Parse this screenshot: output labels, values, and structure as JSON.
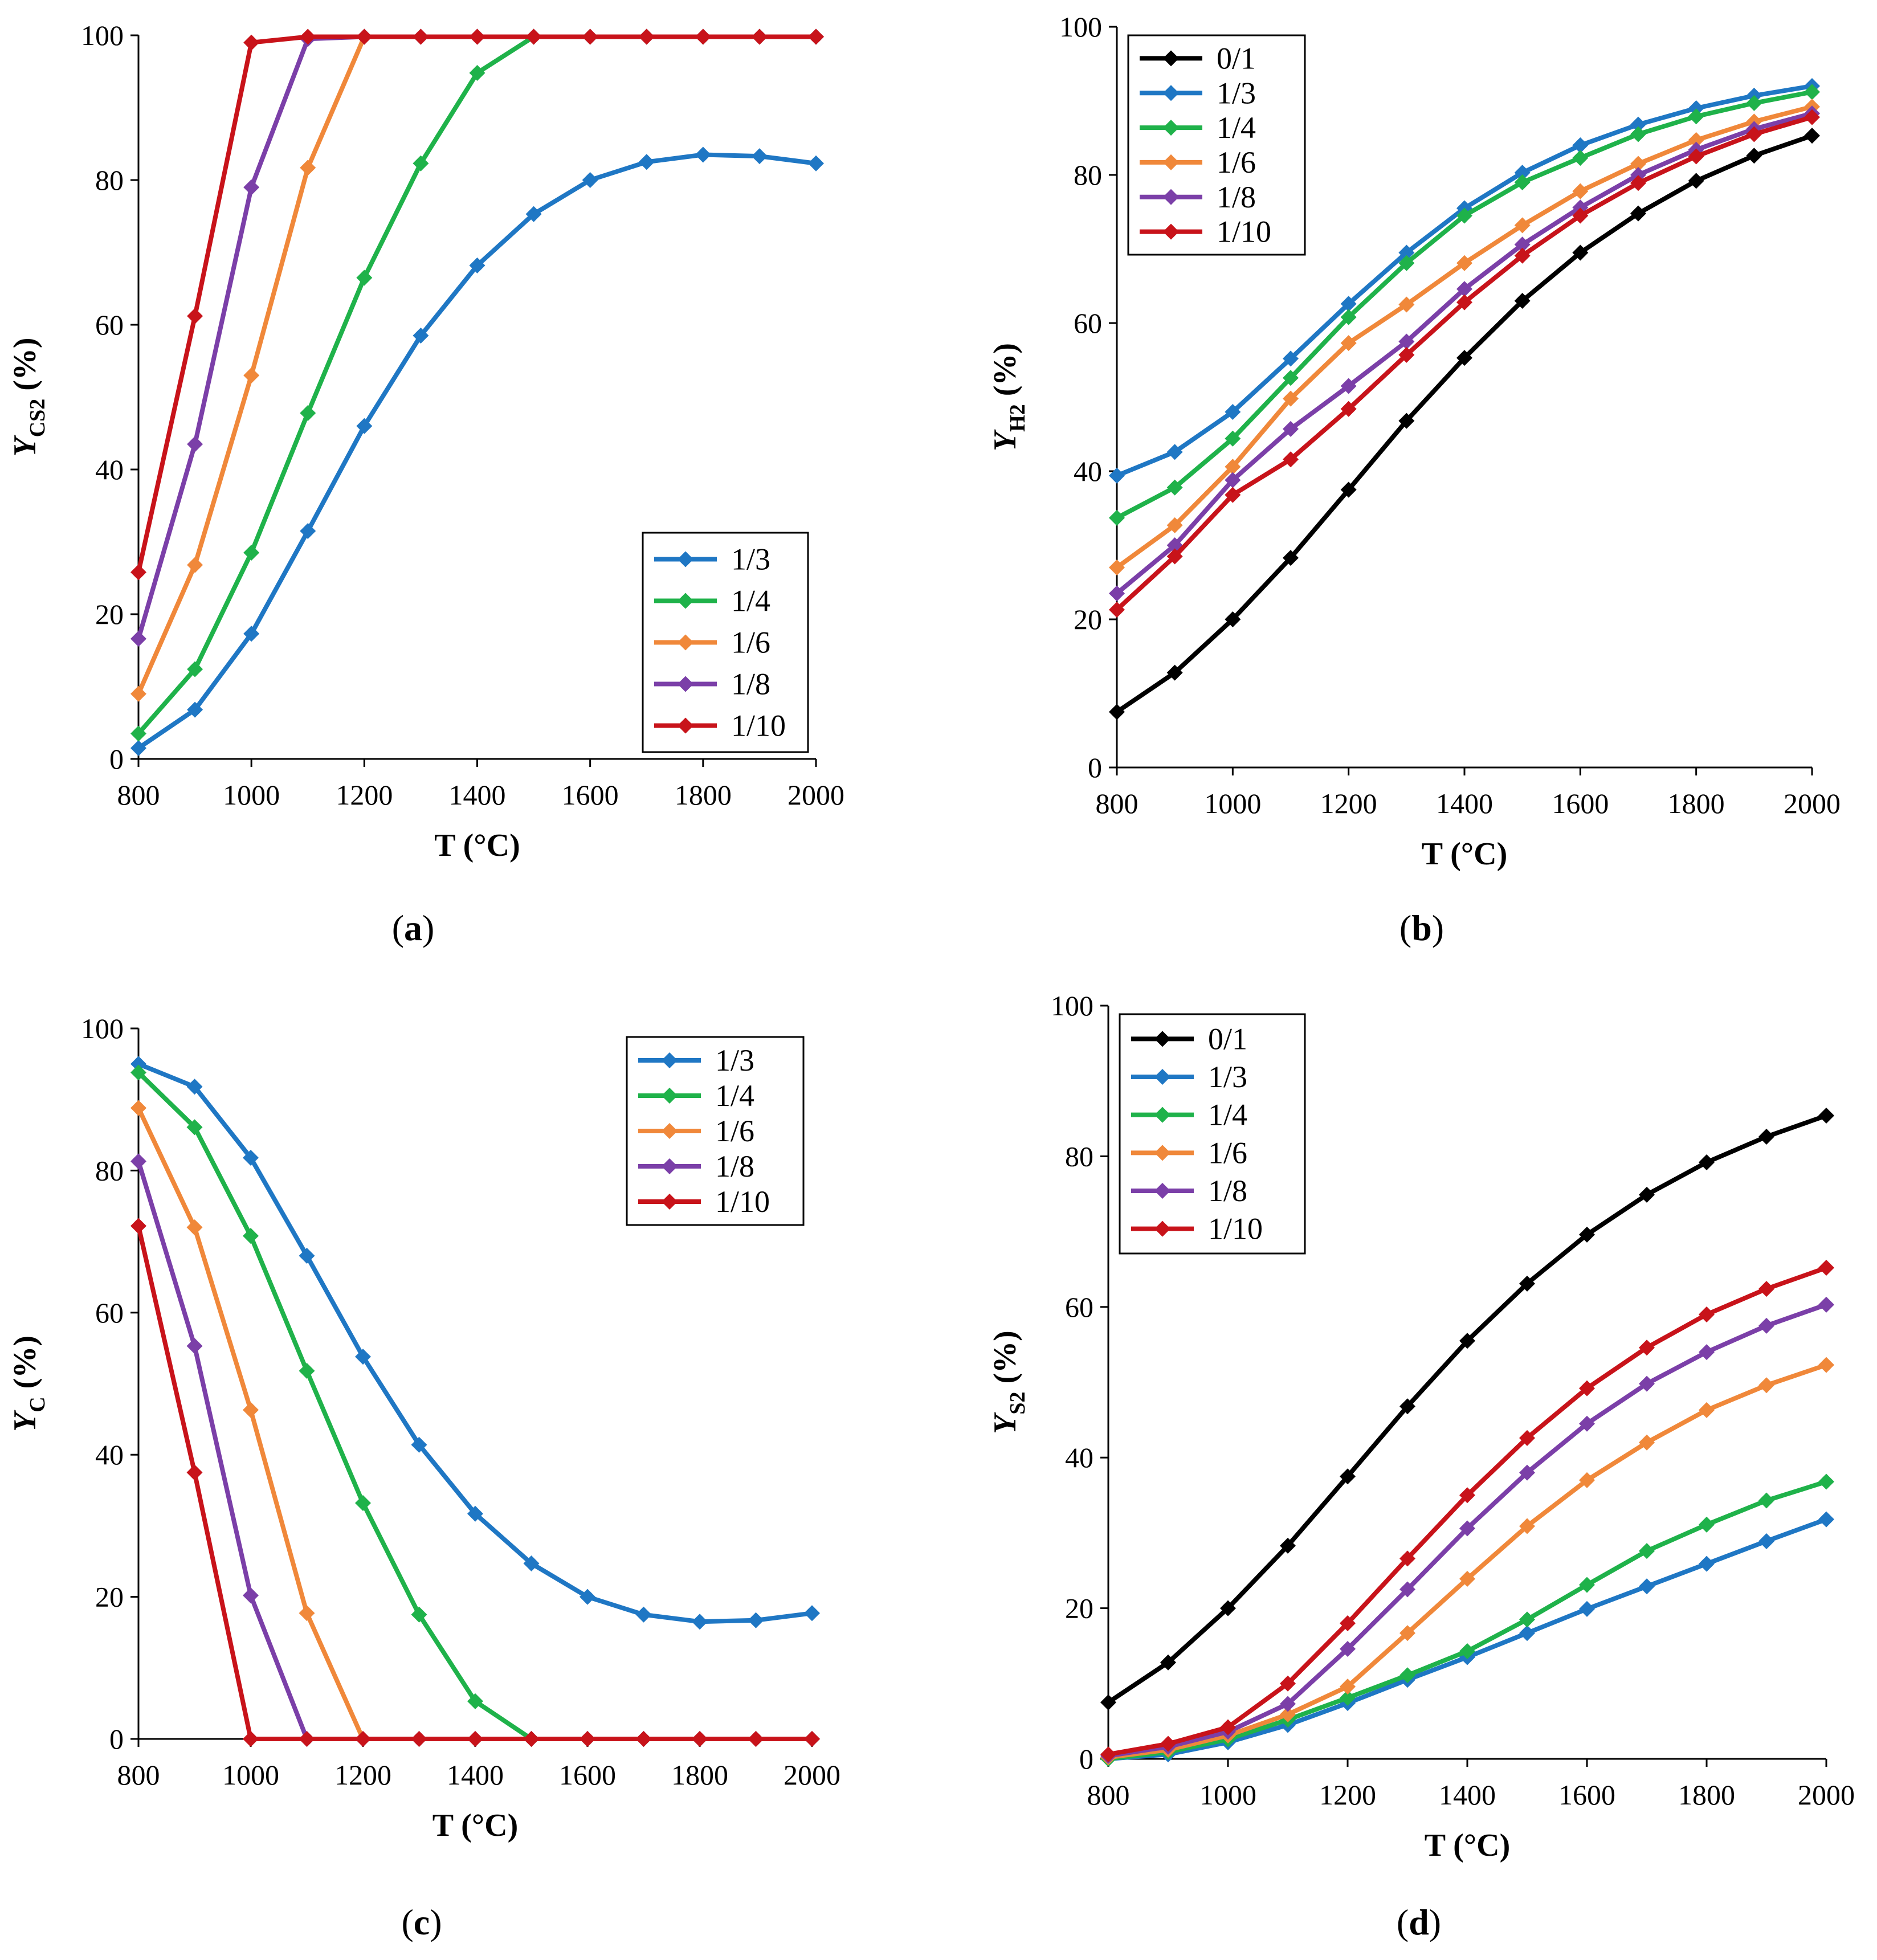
{
  "colors": {
    "0/1": "#000000",
    "1/3": "#1f77c4",
    "1/4": "#1fb24a",
    "1/6": "#f0883a",
    "1/8": "#7b3fa8",
    "1/10": "#c8131a"
  },
  "chart_data": [
    {
      "type": "line",
      "panel_label": "a",
      "xlabel": "T (°C)",
      "ylabel_main": "Y",
      "ylabel_sub": "CS2",
      "ylabel_suffix": " (%)",
      "xlim": [
        800,
        2000
      ],
      "ylim": [
        0,
        100
      ],
      "xticks": [
        "800",
        "1000",
        "1200",
        "1400",
        "1600",
        "1800",
        "2000"
      ],
      "yticks": [
        "0",
        "20",
        "40",
        "60",
        "80",
        "100"
      ],
      "legend_position": "bottom-right",
      "x": [
        800,
        900,
        1000,
        1100,
        1200,
        1300,
        1400,
        1500,
        1600,
        1700,
        1800,
        1900,
        2000
      ],
      "series": [
        {
          "name": "1/3",
          "values": [
            1.5,
            6.8,
            17.3,
            31.5,
            46,
            58.5,
            68.2,
            75.3,
            80,
            82.5,
            83.5,
            83.3,
            82.3
          ]
        },
        {
          "name": "1/4",
          "values": [
            3.5,
            12.4,
            28.5,
            47.8,
            66.5,
            82.3,
            94.8,
            99.8,
            99.8,
            99.8,
            99.8,
            99.8,
            99.8
          ]
        },
        {
          "name": "1/6",
          "values": [
            9,
            26.8,
            53,
            81.7,
            99.8,
            99.8,
            99.8,
            99.8,
            99.8,
            99.8,
            99.8,
            99.8,
            99.8
          ]
        },
        {
          "name": "1/8",
          "values": [
            16.6,
            43.5,
            79,
            99.5,
            99.8,
            99.8,
            99.8,
            99.8,
            99.8,
            99.8,
            99.8,
            99.8,
            99.8
          ]
        },
        {
          "name": "1/10",
          "values": [
            25.8,
            61.2,
            99,
            99.8,
            99.8,
            99.8,
            99.8,
            99.8,
            99.8,
            99.8,
            99.8,
            99.8,
            99.8
          ]
        }
      ]
    },
    {
      "type": "line",
      "panel_label": "b",
      "xlabel": "T (°C)",
      "ylabel_main": "Y",
      "ylabel_sub": "H2",
      "ylabel_suffix": " (%)",
      "xlim": [
        800,
        2000
      ],
      "ylim": [
        0,
        100
      ],
      "xticks": [
        "800",
        "1000",
        "1200",
        "1400",
        "1600",
        "1800",
        "2000"
      ],
      "yticks": [
        "0",
        "20",
        "40",
        "60",
        "80",
        "100"
      ],
      "legend_position": "top-left",
      "x": [
        800,
        900,
        1000,
        1100,
        1200,
        1300,
        1400,
        1500,
        1600,
        1700,
        1800,
        1900,
        2000
      ],
      "series": [
        {
          "name": "0/1",
          "values": [
            7.5,
            12.8,
            20,
            28.3,
            37.5,
            46.8,
            55.3,
            63,
            69.5,
            74.8,
            79.2,
            82.6,
            85.3
          ]
        },
        {
          "name": "1/3",
          "values": [
            39.4,
            42.6,
            48,
            55.2,
            62.6,
            69.5,
            75.5,
            80.3,
            84,
            86.8,
            89,
            90.7,
            92
          ]
        },
        {
          "name": "1/4",
          "values": [
            33.7,
            37.8,
            44.4,
            52.6,
            60.8,
            68.1,
            74.5,
            79,
            82.3,
            85.5,
            87.9,
            89.7,
            91.2
          ]
        },
        {
          "name": "1/6",
          "values": [
            27,
            32.7,
            40.6,
            49.8,
            57.3,
            62.5,
            68.1,
            73.2,
            77.8,
            81.5,
            84.7,
            87.2,
            89.2
          ]
        },
        {
          "name": "1/8",
          "values": [
            23.5,
            30,
            38.8,
            45.7,
            51.5,
            57.5,
            64.6,
            70.6,
            75.6,
            80,
            83.4,
            86.2,
            88.3
          ]
        },
        {
          "name": "1/10",
          "values": [
            21.3,
            28.5,
            36.8,
            41.6,
            48.4,
            55.7,
            62.8,
            69.1,
            74.5,
            78.9,
            82.5,
            85.5,
            87.8
          ]
        }
      ]
    },
    {
      "type": "line",
      "panel_label": "c",
      "xlabel": "T (°C)",
      "ylabel_main": "Y",
      "ylabel_sub": "C",
      "ylabel_suffix": " (%)",
      "xlim": [
        800,
        2000
      ],
      "ylim": [
        0,
        100
      ],
      "xticks": [
        "800",
        "1000",
        "1200",
        "1400",
        "1600",
        "1800",
        "2000"
      ],
      "yticks": [
        "0",
        "20",
        "40",
        "60",
        "80",
        "100"
      ],
      "legend_position": "top-right",
      "x": [
        800,
        900,
        1000,
        1100,
        1200,
        1300,
        1400,
        1500,
        1600,
        1700,
        1800,
        1900,
        2000
      ],
      "series": [
        {
          "name": "1/3",
          "values": [
            95,
            91.8,
            81.8,
            68,
            53.8,
            41.4,
            31.7,
            24.7,
            20,
            17.5,
            16.5,
            16.7,
            17.7
          ]
        },
        {
          "name": "1/4",
          "values": [
            93.8,
            86.1,
            70.8,
            51.8,
            33.2,
            17.5,
            5.3,
            0,
            0,
            0,
            0,
            0,
            0
          ]
        },
        {
          "name": "1/6",
          "values": [
            88.8,
            72,
            46.3,
            17.7,
            0,
            0,
            0,
            0,
            0,
            0,
            0,
            0,
            0
          ]
        },
        {
          "name": "1/8",
          "values": [
            81.3,
            55.3,
            20.2,
            0,
            0,
            0,
            0,
            0,
            0,
            0,
            0,
            0,
            0
          ]
        },
        {
          "name": "1/10",
          "values": [
            72.2,
            37.5,
            0,
            0,
            0,
            0,
            0,
            0,
            0,
            0,
            0,
            0,
            0
          ]
        }
      ]
    },
    {
      "type": "line",
      "panel_label": "d",
      "xlabel": "T (°C)",
      "ylabel_main": "Y",
      "ylabel_sub": "S2",
      "ylabel_suffix": " (%)",
      "xlim": [
        800,
        2000
      ],
      "ylim": [
        0,
        100
      ],
      "xticks": [
        "800",
        "1000",
        "1200",
        "1400",
        "1600",
        "1800",
        "2000"
      ],
      "yticks": [
        "0",
        "20",
        "40",
        "60",
        "80",
        "100"
      ],
      "legend_position": "top-left",
      "x": [
        800,
        900,
        1000,
        1100,
        1200,
        1300,
        1400,
        1500,
        1600,
        1700,
        1800,
        1900,
        2000
      ],
      "series": [
        {
          "name": "0/1",
          "values": [
            7.5,
            12.8,
            20,
            28.3,
            37.5,
            46.8,
            55.5,
            63.1,
            69.6,
            74.9,
            79.2,
            82.6,
            85.4
          ]
        },
        {
          "name": "1/3",
          "values": [
            0,
            0.6,
            2.2,
            4.5,
            7.4,
            10.5,
            13.5,
            16.7,
            19.9,
            22.9,
            25.9,
            28.9,
            31.8
          ]
        },
        {
          "name": "1/4",
          "values": [
            0,
            0.9,
            2.6,
            5.2,
            8.1,
            11.1,
            14.3,
            18.5,
            23.1,
            27.6,
            31.1,
            34.3,
            36.8
          ]
        },
        {
          "name": "1/6",
          "values": [
            0.2,
            1.2,
            3.1,
            5.9,
            9.6,
            16.7,
            23.9,
            30.9,
            37,
            42,
            46.3,
            49.6,
            52.3
          ]
        },
        {
          "name": "1/8",
          "values": [
            0.4,
            1.6,
            3.6,
            7.3,
            14.6,
            22.5,
            30.6,
            38,
            44.5,
            49.8,
            54,
            57.5,
            60.3
          ]
        },
        {
          "name": "1/10",
          "values": [
            0.6,
            2,
            4.2,
            10,
            18,
            26.6,
            35,
            42.6,
            49.2,
            54.6,
            59,
            62.4,
            65.2
          ]
        }
      ]
    }
  ]
}
